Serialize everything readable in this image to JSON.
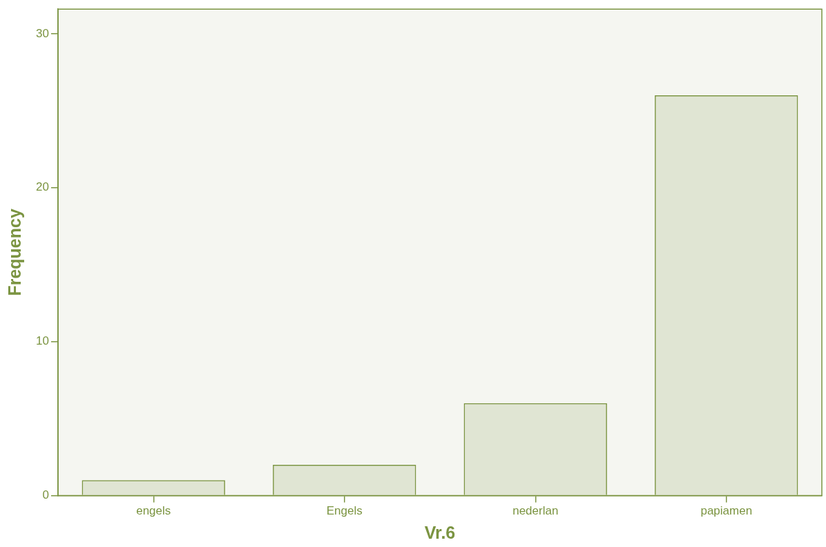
{
  "chart_data": {
    "type": "bar",
    "xlabel": "Vr.6",
    "ylabel": "Frequency",
    "categories": [
      "engels",
      "Engels",
      "nederlan",
      "papiamen"
    ],
    "values": [
      1,
      2,
      6,
      26
    ],
    "color": "#7b9441",
    "ylim": [
      0,
      31.6
    ],
    "yticks": [
      0,
      10,
      20,
      30
    ],
    "legend": false
  }
}
